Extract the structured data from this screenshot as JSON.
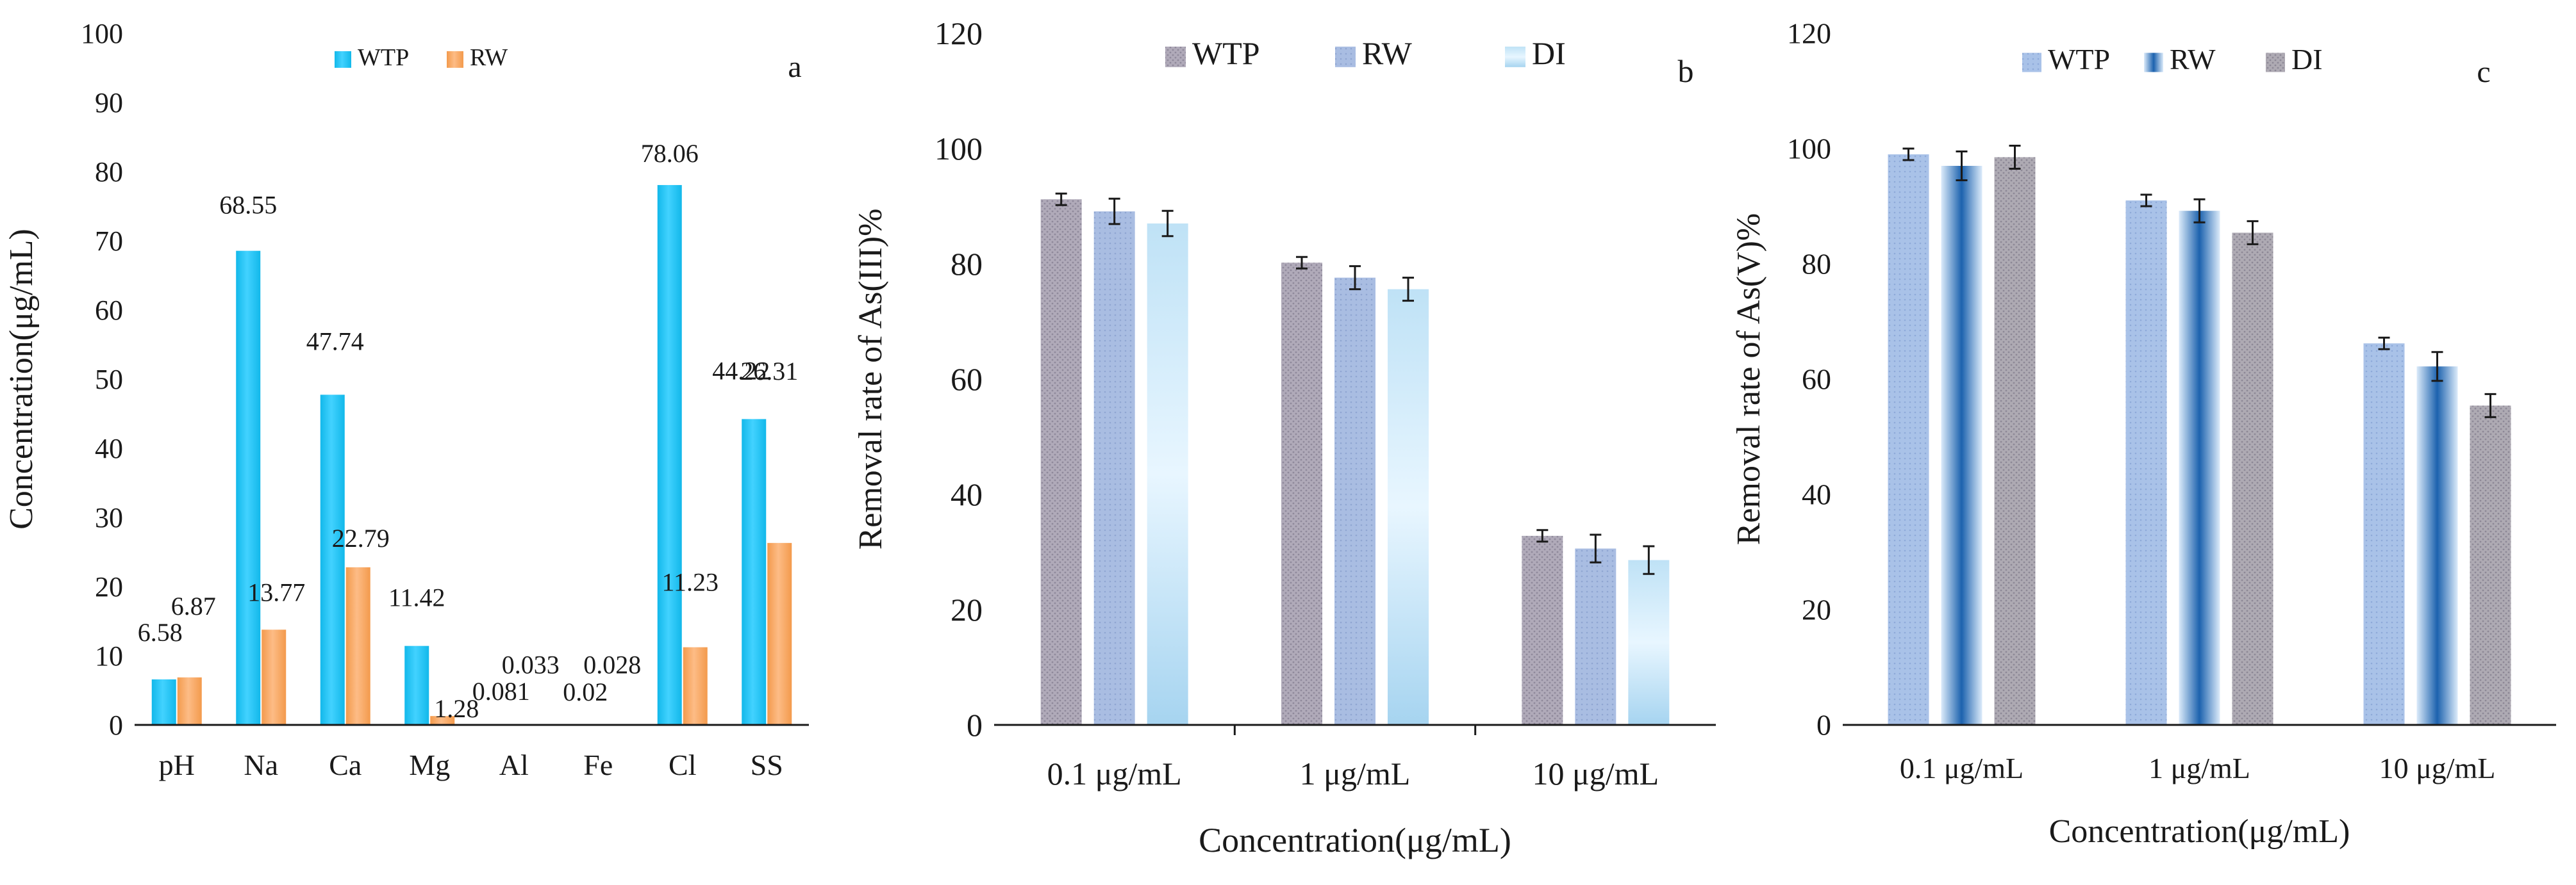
{
  "colors": {
    "wtp_a": "#1ec8f4",
    "rw_a": "#f7a057",
    "wtp_b": "#a9a3b3",
    "rw_b": "#a4b9df",
    "di_b": "#b6dcf3",
    "wtp_c": "#a7c0e6",
    "rw_c": "#1c62ae",
    "di_c": "#a7a3ab",
    "axis": "#1a1a1a"
  },
  "chart_data": [
    {
      "type": "bar",
      "panel_label": "a",
      "title": "",
      "xlabel": "",
      "ylabel": "Concentration(μg/mL)",
      "ylim": [
        0,
        100
      ],
      "yticks": [
        0,
        10,
        20,
        30,
        40,
        50,
        60,
        70,
        80,
        90,
        100
      ],
      "legend_position": "top",
      "categories": [
        "pH",
        "Na",
        "Ca",
        "Mg",
        "Al",
        "Fe",
        "Cl",
        "SS"
      ],
      "series": [
        {
          "name": "WTP",
          "values": [
            6.58,
            68.55,
            47.74,
            11.42,
            0.081,
            0.02,
            78.06,
            44.22
          ],
          "labels": [
            "6.58",
            "68.55",
            "47.74",
            "11.42",
            "0.081",
            "0.02",
            "78.06",
            "44.22"
          ]
        },
        {
          "name": "RW",
          "values": [
            6.87,
            13.77,
            22.79,
            1.28,
            0.033,
            0.028,
            11.23,
            26.31
          ],
          "labels": [
            "6.87",
            "13.77",
            "22.79",
            "1.28",
            "0.033",
            "0.028",
            "11.23",
            "26.31"
          ]
        }
      ]
    },
    {
      "type": "bar",
      "panel_label": "b",
      "title": "",
      "xlabel": "Concentration(μg/mL)",
      "ylabel": "Removal rate of As(III)%",
      "ylim": [
        0,
        120
      ],
      "yticks": [
        0,
        20,
        40,
        60,
        80,
        100,
        120
      ],
      "legend_position": "top",
      "categories": [
        "0.1 μg/mL",
        "1 μg/mL",
        "10 μg/mL"
      ],
      "series": [
        {
          "name": "WTP",
          "values": [
            91.2,
            80.2,
            32.8
          ],
          "errors": [
            1.0,
            1.0,
            1.0
          ]
        },
        {
          "name": "RW",
          "values": [
            89.1,
            77.6,
            30.6
          ],
          "errors": [
            2.2,
            2.0,
            2.4
          ]
        },
        {
          "name": "DI",
          "values": [
            87.0,
            75.6,
            28.6
          ],
          "errors": [
            2.2,
            2.0,
            2.4
          ]
        }
      ]
    },
    {
      "type": "bar",
      "panel_label": "c",
      "title": "",
      "xlabel": "Concentration(μg/mL)",
      "ylabel": "Removal rate of As(V)%",
      "ylim": [
        0,
        120
      ],
      "yticks": [
        0,
        20,
        40,
        60,
        80,
        100,
        120
      ],
      "legend_position": "top",
      "categories": [
        "0.1 μg/mL",
        "1 μg/mL",
        "10 μg/mL"
      ],
      "series": [
        {
          "name": "WTP",
          "values": [
            99.0,
            91.0,
            66.2
          ],
          "errors": [
            1.0,
            1.0,
            1.0
          ]
        },
        {
          "name": "RW",
          "values": [
            97.0,
            89.2,
            62.2
          ],
          "errors": [
            2.5,
            2.0,
            2.5
          ]
        },
        {
          "name": "DI",
          "values": [
            98.5,
            85.4,
            55.4
          ],
          "errors": [
            2.0,
            2.0,
            2.0
          ]
        }
      ]
    }
  ]
}
